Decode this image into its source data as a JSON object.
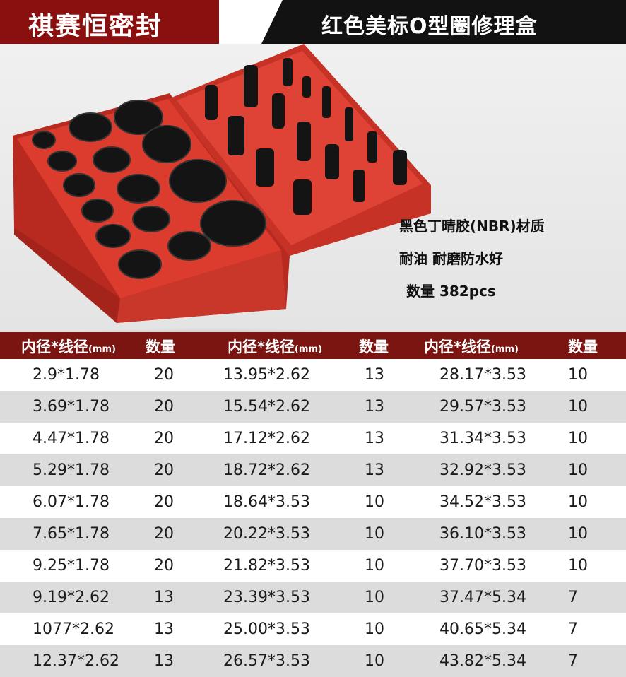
{
  "header": {
    "brand": "祺赛恒密封",
    "product_title": "红色美标O型圈修理盒"
  },
  "info": {
    "material": "黑色丁晴胶(NBR)材质",
    "features": "耐油 耐磨防水好",
    "quantity": "数量 382pcs"
  },
  "table": {
    "headers": {
      "size_main": "内径*线径",
      "size_unit": "(mm)",
      "qty": "数量"
    },
    "rows": [
      [
        "2.9*1.78",
        "20",
        "13.95*2.62",
        "13",
        "28.17*3.53",
        "10"
      ],
      [
        "3.69*1.78",
        "20",
        "15.54*2.62",
        "13",
        "29.57*3.53",
        "10"
      ],
      [
        "4.47*1.78",
        "20",
        "17.12*2.62",
        "13",
        "31.34*3.53",
        "10"
      ],
      [
        "5.29*1.78",
        "20",
        "18.72*2.62",
        "13",
        "32.92*3.53",
        "10"
      ],
      [
        "6.07*1.78",
        "20",
        "18.64*3.53",
        "10",
        "34.52*3.53",
        "10"
      ],
      [
        "7.65*1.78",
        "20",
        "20.22*3.53",
        "10",
        "36.10*3.53",
        "10"
      ],
      [
        "9.25*1.78",
        "20",
        "21.82*3.53",
        "10",
        "37.70*3.53",
        "10"
      ],
      [
        "9.19*2.62",
        "13",
        "23.39*3.53",
        "10",
        "37.47*5.34",
        "7"
      ],
      [
        "1077*2.62",
        "13",
        "25.00*3.53",
        "10",
        "40.65*5.34",
        "7"
      ],
      [
        "12.37*2.62",
        "13",
        "26.57*3.53",
        "10",
        "43.82*5.34",
        "7"
      ]
    ]
  }
}
